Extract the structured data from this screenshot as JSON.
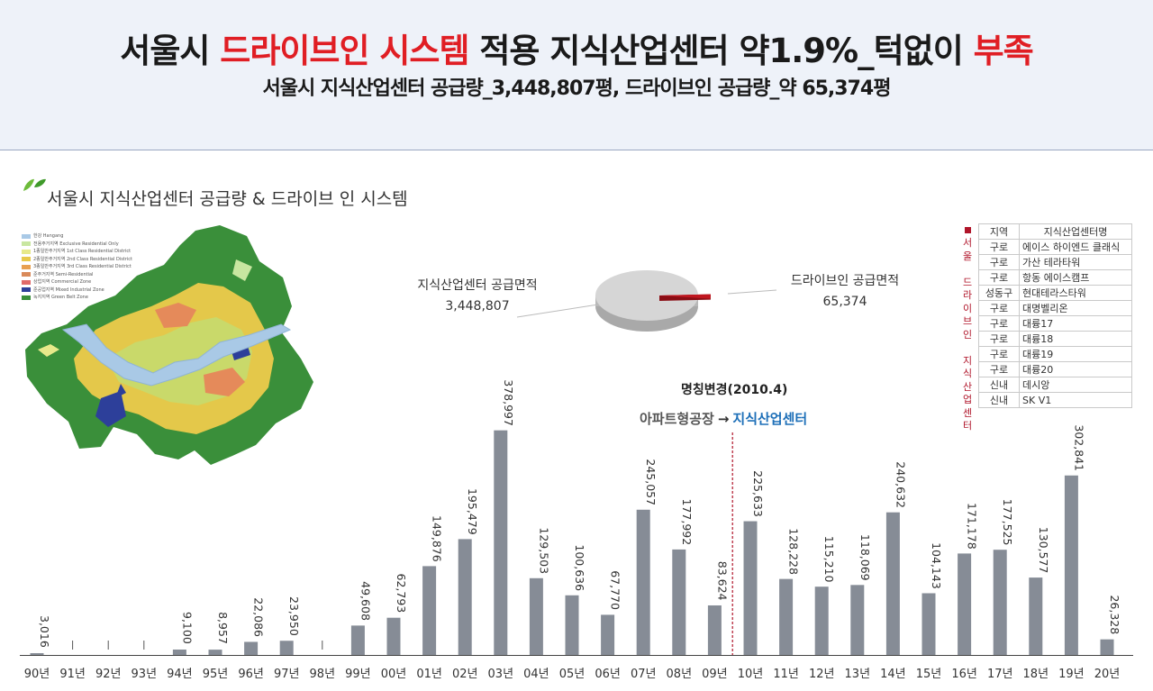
{
  "header": {
    "title_prefix": "서울시 ",
    "title_red1": "드라이브인 시스템",
    "title_mid": " 적용 지식산업센터 약1.9%_턱없이 ",
    "title_red2": "부족",
    "subtitle": "서울시 지식산업센터 공급량_3,448,807평, 드라이브인 공급량_약 65,374평"
  },
  "section_title": "서울시 지식산업센터 공급량 & 드라이브 인 시스템",
  "map_legend": [
    {
      "label": "한강  Hangang",
      "color": "#a9c9e6"
    },
    {
      "label": "전용주거지역  Exclusive Residential Only",
      "color": "#c8e6a0"
    },
    {
      "label": "1종일반주거지역  1st Class Residential District",
      "color": "#e7e98a"
    },
    {
      "label": "2종일반주거지역  2nd Class Residential District",
      "color": "#e8c84a"
    },
    {
      "label": "3종일반주거지역  3rd Class Residential District",
      "color": "#e8a050"
    },
    {
      "label": "준주거지역  Semi-Residential",
      "color": "#d98a5a"
    },
    {
      "label": "상업지역  Commercial Zone",
      "color": "#e06a6a"
    },
    {
      "label": "준공업지역  Mixed Industrial Zone",
      "color": "#2d3f9a"
    },
    {
      "label": "녹지지역  Green Belt Zone",
      "color": "#3a8f3a"
    }
  ],
  "pie": {
    "left_label": "지식산업센터 공급면적",
    "left_value": "3,448,807",
    "right_label": "드라이브인 공급면적",
    "right_value": "65,374",
    "total": 3448807,
    "drive_in": 65374,
    "colors": {
      "main": "#d6d6d6",
      "drive_in": "#c0161f"
    }
  },
  "projects": {
    "vertical_title": "서울 드라이브인 지식산업센터",
    "header_region": "지역",
    "header_name": "지식산업센터명",
    "rows": [
      {
        "region": "구로",
        "name": "에이스 하이엔드 클래식"
      },
      {
        "region": "구로",
        "name": "가산 테라타워"
      },
      {
        "region": "구로",
        "name": "항동 에이스캠프"
      },
      {
        "region": "성동구",
        "name": "현대테라스타워"
      },
      {
        "region": "구로",
        "name": "대명벨리온"
      },
      {
        "region": "구로",
        "name": "대륭17"
      },
      {
        "region": "구로",
        "name": "대륭18"
      },
      {
        "region": "구로",
        "name": "대륭19"
      },
      {
        "region": "구로",
        "name": "대륭20"
      },
      {
        "region": "신내",
        "name": "데시앙"
      },
      {
        "region": "신내",
        "name": "SK V1"
      }
    ]
  },
  "rename": {
    "title": "명칭변경(2010.4)",
    "from": "아파트형공장",
    "arrow": "→",
    "to": "지식산업센터"
  },
  "chart_data": {
    "type": "bar",
    "categories": [
      "90년",
      "91년",
      "92년",
      "93년",
      "94년",
      "95년",
      "96년",
      "97년",
      "98년",
      "99년",
      "00년",
      "01년",
      "02년",
      "03년",
      "04년",
      "05년",
      "06년",
      "07년",
      "08년",
      "09년",
      "10년",
      "11년",
      "12년",
      "13년",
      "14년",
      "15년",
      "16년",
      "17년",
      "18년",
      "19년",
      "20년"
    ],
    "values": [
      3016,
      null,
      null,
      null,
      9100,
      8957,
      22086,
      23950,
      null,
      49608,
      62793,
      149876,
      195479,
      378997,
      129503,
      100636,
      67770,
      245057,
      177992,
      83624,
      225633,
      128228,
      115210,
      118069,
      240632,
      104143,
      171178,
      177525,
      130577,
      302841,
      26328
    ],
    "value_labels": [
      "3,016",
      "",
      "",
      "",
      "9,100",
      "8,957",
      "22,086",
      "23,950",
      "",
      "49,608",
      "62,793",
      "149,876",
      "195,479",
      "378,997",
      "129,503",
      "100,636",
      "67,770",
      "245,057",
      "177,992",
      "83,624",
      "225,633",
      "128,228",
      "115,210",
      "118,069",
      "240,632",
      "104,143",
      "171,178",
      "177,525",
      "130,577",
      "302,841",
      "26,328"
    ],
    "ylim": [
      0,
      380000
    ],
    "bar_color": "#868c96",
    "marker_color": "#b0152a"
  }
}
